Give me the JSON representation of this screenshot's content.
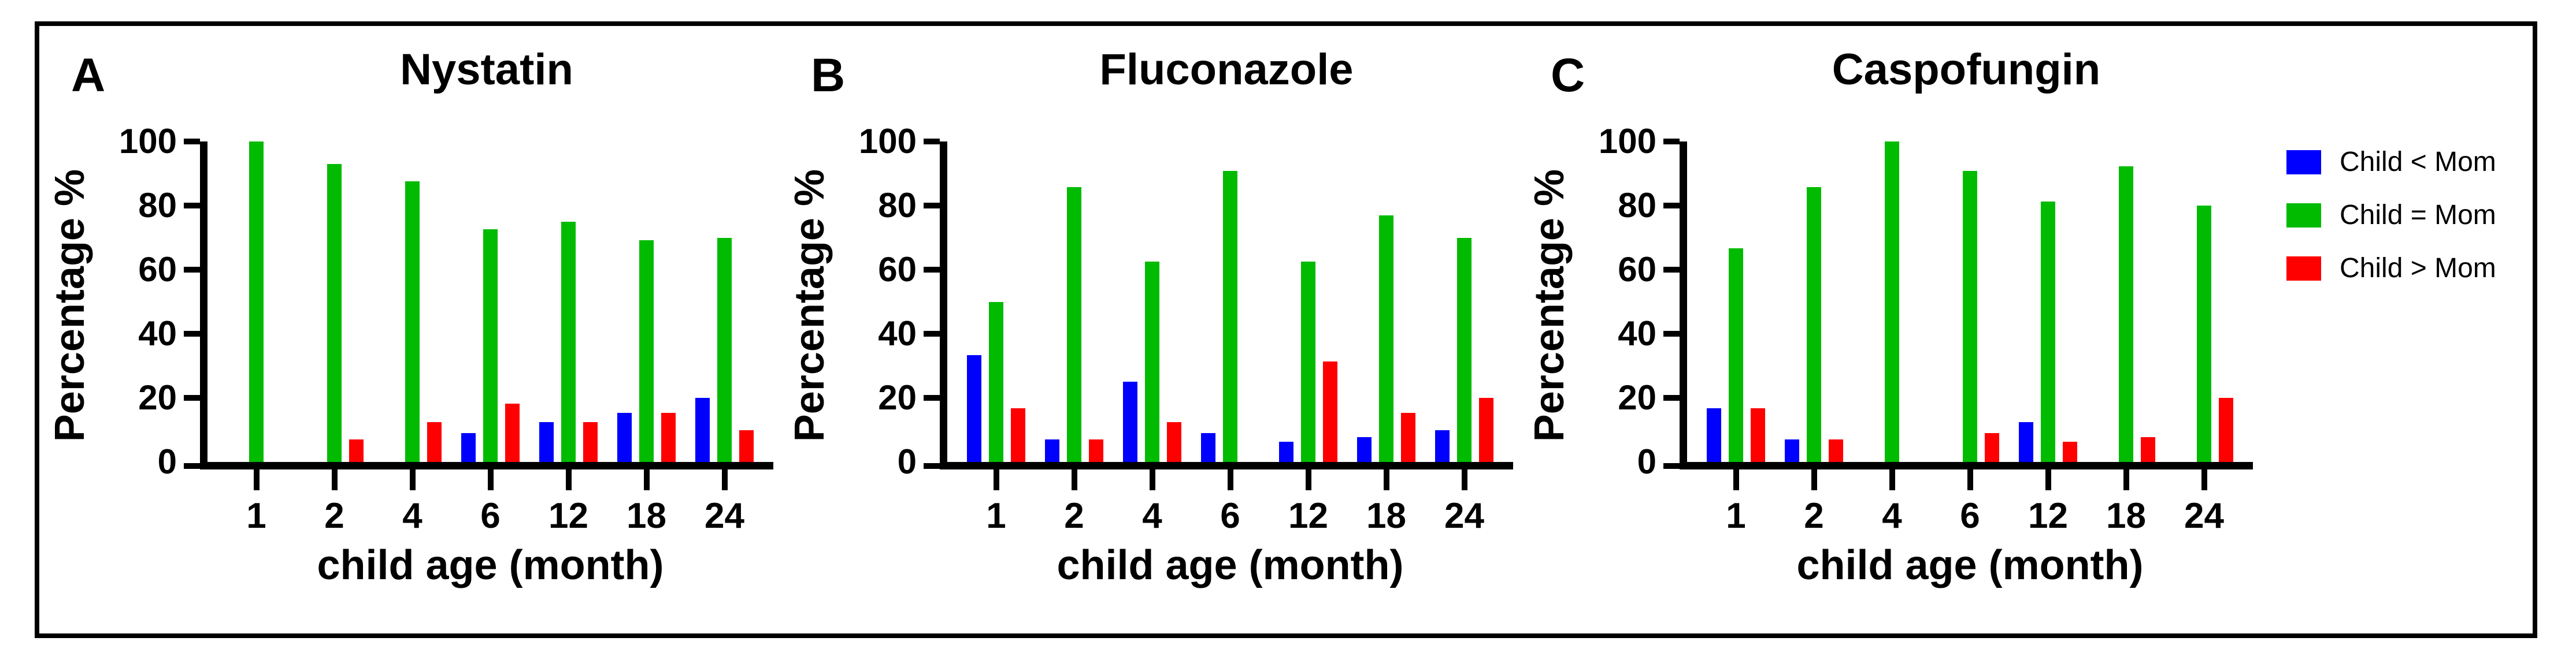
{
  "figure": {
    "background": "#ffffff",
    "border_color": "#000000",
    "legend": {
      "position": "right",
      "items": [
        {
          "label": "Child < Mom",
          "color": "#0000ff",
          "swatch": "blue-square"
        },
        {
          "label": "Child = Mom",
          "color": "#00bb00",
          "swatch": "green-square"
        },
        {
          "label": "Child > Mom",
          "color": "#ff0000",
          "swatch": "red-square"
        }
      ]
    }
  },
  "chart_data": [
    {
      "type": "bar",
      "panel_letter": "A",
      "title": "Nystatin",
      "xlabel": "child age (month)",
      "ylabel": "Percentage %",
      "ylim": [
        0,
        100
      ],
      "yticks": [
        0,
        20,
        40,
        60,
        80,
        100
      ],
      "grid": false,
      "categories": [
        "1",
        "2",
        "4",
        "6",
        "12",
        "18",
        "24"
      ],
      "series": [
        {
          "name": "Child < Mom",
          "color": "#0000ff",
          "values": [
            0,
            0,
            0,
            9.1,
            12.5,
            15.4,
            20
          ]
        },
        {
          "name": "Child = Mom",
          "color": "#00bb00",
          "values": [
            100,
            92.9,
            87.5,
            72.7,
            75,
            69.2,
            70
          ]
        },
        {
          "name": "Child > Mom",
          "color": "#ff0000",
          "values": [
            0,
            7.1,
            12.5,
            18.2,
            12.5,
            15.4,
            10
          ]
        }
      ]
    },
    {
      "type": "bar",
      "panel_letter": "B",
      "title": "Fluconazole",
      "xlabel": "child age (month)",
      "ylabel": "Percentage %",
      "ylim": [
        0,
        100
      ],
      "yticks": [
        0,
        20,
        40,
        60,
        80,
        100
      ],
      "grid": false,
      "categories": [
        "1",
        "2",
        "4",
        "6",
        "12",
        "18",
        "24"
      ],
      "series": [
        {
          "name": "Child < Mom",
          "color": "#0000ff",
          "values": [
            33.3,
            7.1,
            25,
            9.1,
            6.3,
            7.7,
            10
          ]
        },
        {
          "name": "Child = Mom",
          "color": "#00bb00",
          "values": [
            50,
            85.7,
            62.5,
            90.9,
            62.5,
            76.9,
            70
          ]
        },
        {
          "name": "Child > Mom",
          "color": "#ff0000",
          "values": [
            16.7,
            7.1,
            12.5,
            0,
            31.3,
            15.4,
            20
          ]
        }
      ]
    },
    {
      "type": "bar",
      "panel_letter": "C",
      "title": "Caspofungin",
      "xlabel": "child age (month)",
      "ylabel": "Percentage %",
      "ylim": [
        0,
        100
      ],
      "yticks": [
        0,
        20,
        40,
        60,
        80,
        100
      ],
      "grid": false,
      "categories": [
        "1",
        "2",
        "4",
        "6",
        "12",
        "18",
        "24"
      ],
      "series": [
        {
          "name": "Child < Mom",
          "color": "#0000ff",
          "values": [
            16.7,
            7.1,
            0,
            0,
            12.5,
            0,
            0
          ]
        },
        {
          "name": "Child = Mom",
          "color": "#00bb00",
          "values": [
            66.7,
            85.7,
            100,
            90.9,
            81.3,
            92.3,
            80
          ]
        },
        {
          "name": "Child > Mom",
          "color": "#ff0000",
          "values": [
            16.7,
            7.1,
            0,
            9.1,
            6.3,
            7.7,
            20
          ]
        }
      ]
    }
  ]
}
